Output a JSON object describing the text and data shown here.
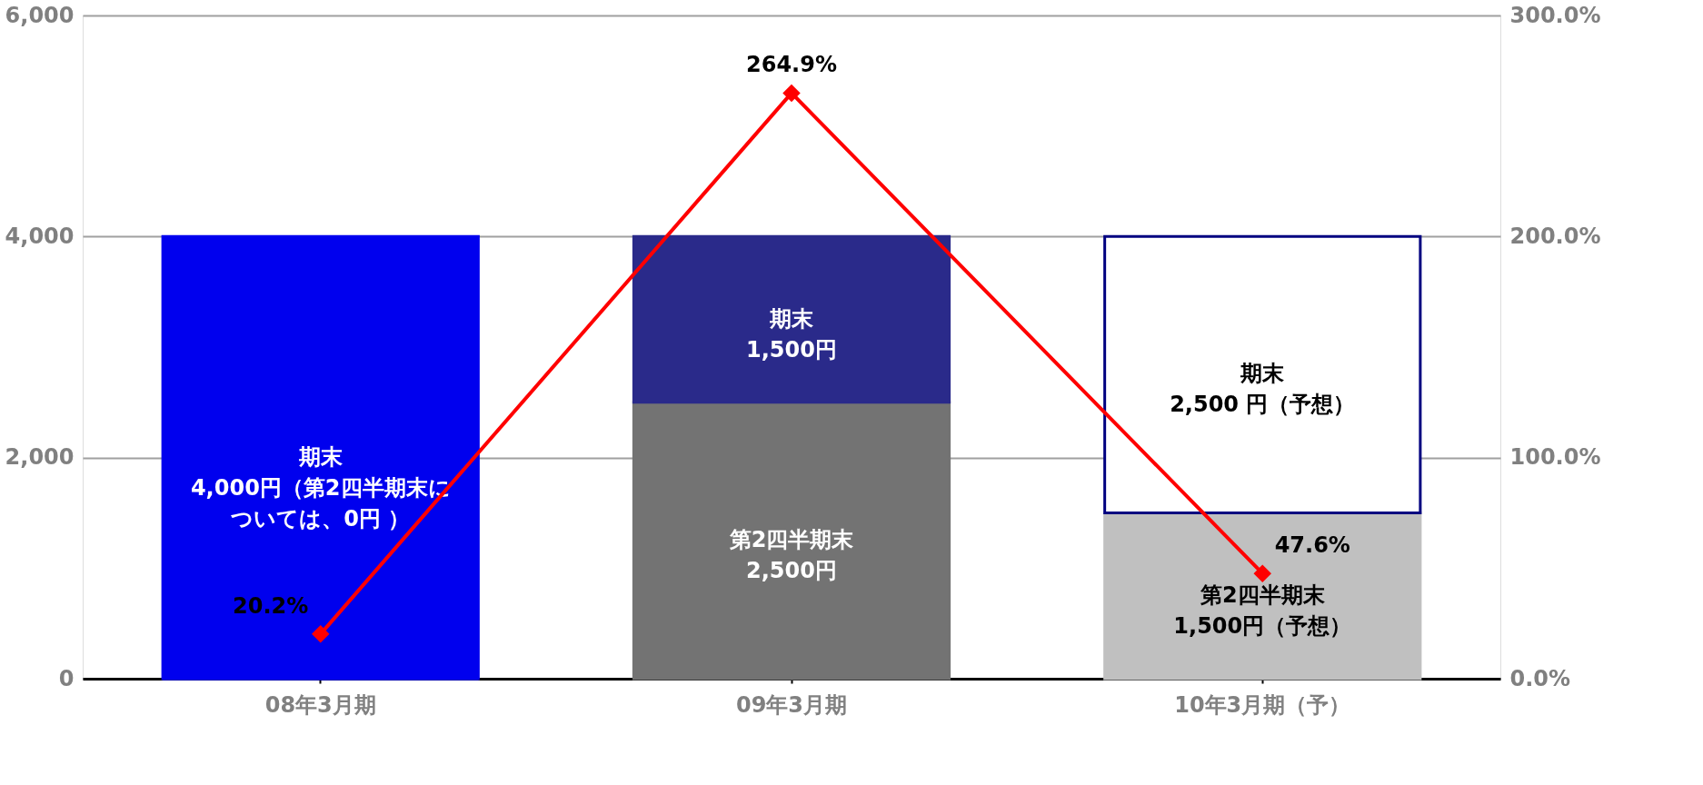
{
  "chart_data": {
    "type": "bar",
    "stacked": true,
    "categories": [
      "08年3月期",
      "09年3月期",
      "10年3月期（予）"
    ],
    "series": [
      {
        "name": null,
        "colors": [
          "#0000ee",
          "#737373",
          "#c0c0c0"
        ],
        "values": [
          0,
          2500,
          1500
        ]
      },
      {
        "name": null,
        "colors": [
          "#0000ee",
          "#2a2a8a",
          "#ffffff"
        ],
        "values": [
          4000,
          1500,
          2500
        ]
      },
      {
        "type": "line",
        "axis": "y2",
        "color": "#ff0000",
        "marker": "diamond",
        "values": [
          20.2,
          264.9,
          47.6
        ],
        "value_labels": [
          "20.2%",
          "264.9%",
          "47.6%"
        ]
      }
    ],
    "ylim": [
      0,
      6000
    ],
    "yticks": [
      0,
      {
        "value": 2000,
        "label": "2,000"
      },
      {
        "value": 4000,
        "label": "4,000"
      },
      {
        "value": 6000,
        "label": "6,000"
      }
    ],
    "y2lim": [
      0,
      300
    ],
    "y2ticks": [
      {
        "value": 0,
        "label": "0.0%"
      },
      {
        "value": 100,
        "label": "100.0%"
      },
      {
        "value": 200,
        "label": "200.0%"
      },
      {
        "value": 300,
        "label": "300.0%"
      }
    ],
    "annotations": [
      "期末\n4,000円（第2四半期末については、0円 ）",
      "期末\n1,500円",
      "第2四半期末\n2,500円",
      "期末\n2,500 円（予想）",
      "第2四半期末\n1,500円（予想）"
    ],
    "grid": "y"
  }
}
